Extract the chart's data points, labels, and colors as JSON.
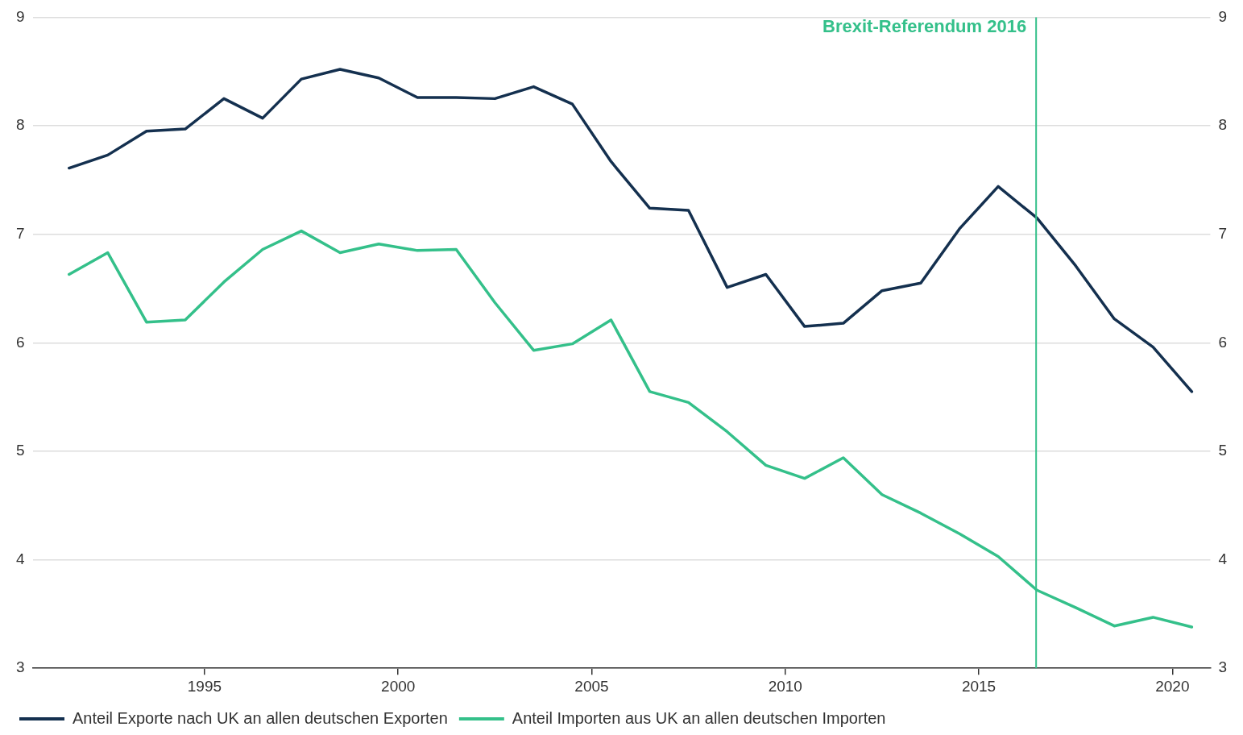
{
  "chart_data": {
    "type": "line",
    "x": [
      1991.5,
      1992.5,
      1993.5,
      1994.5,
      1995.5,
      1996.5,
      1997.5,
      1998.5,
      1999.5,
      2000.5,
      2001.5,
      2002.5,
      2003.5,
      2004.5,
      2005.5,
      2006.5,
      2007.5,
      2008.5,
      2009.5,
      2010.5,
      2011.5,
      2012.5,
      2013.5,
      2014.5,
      2015.5,
      2016.5,
      2017.5,
      2018.5,
      2019.5,
      2020.5
    ],
    "series": [
      {
        "name": "Anteil Exporte nach UK an allen deutschen Exporten",
        "color": "#14304f",
        "values": [
          7.61,
          7.73,
          7.95,
          7.97,
          8.25,
          8.07,
          8.43,
          8.52,
          8.44,
          8.26,
          8.26,
          8.25,
          8.36,
          8.2,
          7.67,
          7.24,
          7.22,
          6.51,
          6.63,
          6.15,
          6.18,
          6.48,
          6.55,
          7.05,
          7.44,
          7.15,
          6.71,
          6.22,
          5.96,
          5.55
        ]
      },
      {
        "name": "Anteil Importen aus UK an allen deutschen Importen",
        "color": "#34c08a",
        "values": [
          6.63,
          6.83,
          6.19,
          6.21,
          6.56,
          6.86,
          7.03,
          6.83,
          6.91,
          6.85,
          6.86,
          6.37,
          5.93,
          5.99,
          6.21,
          5.55,
          5.45,
          5.18,
          4.87,
          4.75,
          4.94,
          4.6,
          4.43,
          4.24,
          4.03,
          3.72,
          3.56,
          3.39,
          3.47,
          3.38
        ]
      }
    ],
    "xlim": [
      1990.56,
      2020.98
    ],
    "xticks": [
      1995,
      2000,
      2005,
      2010,
      2015,
      2020
    ],
    "ylim": [
      3,
      9
    ],
    "yticks": [
      3,
      4,
      5,
      6,
      7,
      8,
      9
    ],
    "y2lim": [
      3,
      9
    ],
    "y2ticks": [
      3,
      4,
      5,
      6,
      7,
      8,
      9
    ],
    "ref_lines": [
      {
        "axis": "x",
        "value": 2016.48,
        "label": "Brexit-Referendum 2016",
        "color": "#34c08a"
      }
    ],
    "grid": "y",
    "legend": "bottom",
    "marker": "none",
    "line_style": "solid"
  }
}
